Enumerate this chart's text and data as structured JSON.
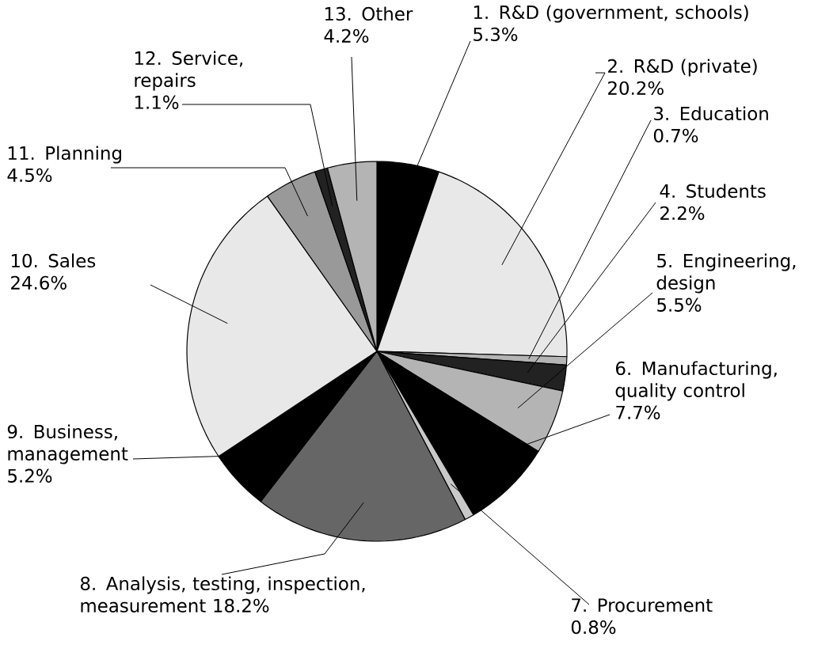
{
  "chart_data": {
    "type": "pie",
    "categories": [
      "1. R&D (government, schools)",
      "2. R&D (private)",
      "3. Education",
      "4. Students",
      "5. Engineering, design",
      "6. Manufacturing, quality control",
      "7. Procurement",
      "8. Analysis, testing, inspection, measurement",
      "9. Business, management",
      "10. Sales",
      "11. Planning",
      "12. Service, repairs",
      "13. Other"
    ],
    "values": [
      5.3,
      20.2,
      0.7,
      2.2,
      5.5,
      7.7,
      0.8,
      18.2,
      5.2,
      24.6,
      4.5,
      1.1,
      4.2
    ],
    "value_labels": [
      "5.3%",
      "20.2%",
      "0.7%",
      "2.2%",
      "5.5%",
      "7.7%",
      "0.8%",
      "18.2%",
      "5.2%",
      "24.6%",
      "4.5%",
      "1.1%",
      "4.2%"
    ],
    "colors": [
      "#000000",
      "#e8e8e8",
      "#b4b4b4",
      "#222222",
      "#b4b4b4",
      "#000000",
      "#c8c8c8",
      "#666666",
      "#000000",
      "#e8e8e8",
      "#999999",
      "#222222",
      "#b4b4b4"
    ]
  }
}
